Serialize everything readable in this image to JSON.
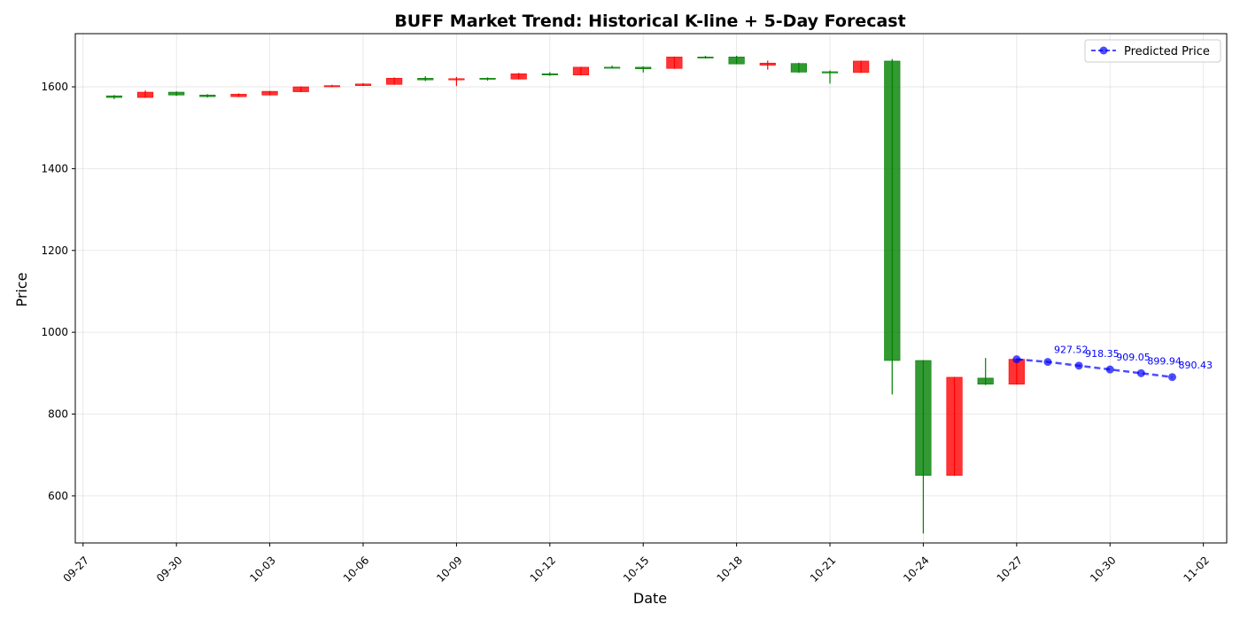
{
  "chart_data": {
    "type": "candlestick",
    "title": "BUFF Market Trend: Historical K-line + 5-Day Forecast",
    "xlabel": "Date",
    "ylabel": "Price",
    "x_range": [
      "2025-09-26T18:00",
      "2025-11-02T18:00"
    ],
    "ylim": [
      485,
      1730
    ],
    "x_ticks": [
      {
        "date": "2025-09-27",
        "label": "09-27"
      },
      {
        "date": "2025-09-30",
        "label": "09-30"
      },
      {
        "date": "2025-10-03",
        "label": "10-03"
      },
      {
        "date": "2025-10-06",
        "label": "10-06"
      },
      {
        "date": "2025-10-09",
        "label": "10-09"
      },
      {
        "date": "2025-10-12",
        "label": "10-12"
      },
      {
        "date": "2025-10-15",
        "label": "10-15"
      },
      {
        "date": "2025-10-18",
        "label": "10-18"
      },
      {
        "date": "2025-10-21",
        "label": "10-21"
      },
      {
        "date": "2025-10-24",
        "label": "10-24"
      },
      {
        "date": "2025-10-27",
        "label": "10-27"
      },
      {
        "date": "2025-10-30",
        "label": "10-30"
      },
      {
        "date": "2025-11-02",
        "label": "11-02"
      }
    ],
    "y_ticks": [
      600,
      800,
      1000,
      1200,
      1400,
      1600
    ],
    "grid": true,
    "legend_position": "top-right",
    "up_color": "#ff0000",
    "down_color": "#008000",
    "candles": [
      {
        "date": "2025-09-28",
        "open": 1578,
        "close": 1574,
        "high": 1580,
        "low": 1570
      },
      {
        "date": "2025-09-29",
        "open": 1574,
        "close": 1587,
        "high": 1591,
        "low": 1573
      },
      {
        "date": "2025-09-30",
        "open": 1587,
        "close": 1580,
        "high": 1589,
        "low": 1578
      },
      {
        "date": "2025-10-01",
        "open": 1580,
        "close": 1576,
        "high": 1582,
        "low": 1574
      },
      {
        "date": "2025-10-02",
        "open": 1576,
        "close": 1582,
        "high": 1584,
        "low": 1575
      },
      {
        "date": "2025-10-03",
        "open": 1580,
        "close": 1589,
        "high": 1590,
        "low": 1579
      },
      {
        "date": "2025-10-04",
        "open": 1588,
        "close": 1600,
        "high": 1601,
        "low": 1587
      },
      {
        "date": "2025-10-05",
        "open": 1600,
        "close": 1603,
        "high": 1605,
        "low": 1599
      },
      {
        "date": "2025-10-06",
        "open": 1603,
        "close": 1607,
        "high": 1609,
        "low": 1602
      },
      {
        "date": "2025-10-07",
        "open": 1606,
        "close": 1621,
        "high": 1623,
        "low": 1605
      },
      {
        "date": "2025-10-08",
        "open": 1621,
        "close": 1617,
        "high": 1626,
        "low": 1614
      },
      {
        "date": "2025-10-09",
        "open": 1617,
        "close": 1620,
        "high": 1624,
        "low": 1602
      },
      {
        "date": "2025-10-10",
        "open": 1621,
        "close": 1619,
        "high": 1623,
        "low": 1615
      },
      {
        "date": "2025-10-11",
        "open": 1619,
        "close": 1632,
        "high": 1634,
        "low": 1618
      },
      {
        "date": "2025-10-12",
        "open": 1632,
        "close": 1629,
        "high": 1636,
        "low": 1627
      },
      {
        "date": "2025-10-13",
        "open": 1629,
        "close": 1648,
        "high": 1649,
        "low": 1628
      },
      {
        "date": "2025-10-14",
        "open": 1648,
        "close": 1646,
        "high": 1652,
        "low": 1645
      },
      {
        "date": "2025-10-15",
        "open": 1648,
        "close": 1644,
        "high": 1650,
        "low": 1635
      },
      {
        "date": "2025-10-16",
        "open": 1645,
        "close": 1673,
        "high": 1674,
        "low": 1644
      },
      {
        "date": "2025-10-17",
        "open": 1673,
        "close": 1672,
        "high": 1676,
        "low": 1669
      },
      {
        "date": "2025-10-18",
        "open": 1673,
        "close": 1656,
        "high": 1676,
        "low": 1655
      },
      {
        "date": "2025-10-19",
        "open": 1653,
        "close": 1658,
        "high": 1664,
        "low": 1642
      },
      {
        "date": "2025-10-20",
        "open": 1657,
        "close": 1636,
        "high": 1659,
        "low": 1634
      },
      {
        "date": "2025-10-21",
        "open": 1637,
        "close": 1634,
        "high": 1640,
        "low": 1608
      },
      {
        "date": "2025-10-22",
        "open": 1635,
        "close": 1663,
        "high": 1664,
        "low": 1634
      },
      {
        "date": "2025-10-23",
        "open": 1663,
        "close": 931,
        "high": 1668,
        "low": 848
      },
      {
        "date": "2025-10-24",
        "open": 931,
        "close": 650,
        "high": 932,
        "low": 508
      },
      {
        "date": "2025-10-25",
        "open": 650,
        "close": 890,
        "high": 891,
        "low": 649
      },
      {
        "date": "2025-10-26",
        "open": 888,
        "close": 873,
        "high": 937,
        "low": 871
      },
      {
        "date": "2025-10-27",
        "open": 873,
        "close": 934,
        "high": 936,
        "low": 872
      }
    ],
    "series": [
      {
        "name": "Predicted Price",
        "color": "#0000ff",
        "points": [
          {
            "date": "2025-10-27",
            "value": 934.0,
            "label": ""
          },
          {
            "date": "2025-10-28",
            "value": 927.52,
            "label": "927.52"
          },
          {
            "date": "2025-10-29",
            "value": 918.35,
            "label": "918.35"
          },
          {
            "date": "2025-10-30",
            "value": 909.05,
            "label": "909.05"
          },
          {
            "date": "2025-10-31",
            "value": 899.94,
            "label": "899.94"
          },
          {
            "date": "2025-11-01",
            "value": 890.43,
            "label": "890.43"
          }
        ]
      }
    ]
  }
}
